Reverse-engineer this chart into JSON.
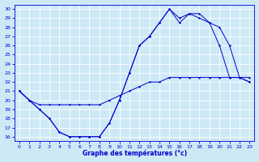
{
  "xlabel": "Graphe des températures (°c)",
  "bg_color": "#cde9f6",
  "line_color": "#0000cc",
  "grid_color": "#ffffff",
  "xlim": [
    -0.5,
    23.5
  ],
  "ylim": [
    15.5,
    30.5
  ],
  "yticks": [
    16,
    17,
    18,
    19,
    20,
    21,
    22,
    23,
    24,
    25,
    26,
    27,
    28,
    29,
    30
  ],
  "xticks": [
    0,
    1,
    2,
    3,
    4,
    5,
    6,
    7,
    8,
    9,
    10,
    11,
    12,
    13,
    14,
    15,
    16,
    17,
    18,
    19,
    20,
    21,
    22,
    23
  ],
  "curve1_x": [
    0,
    1,
    2,
    3,
    4,
    5,
    6,
    7,
    8,
    9,
    10,
    11,
    12,
    13,
    14,
    15,
    16,
    17,
    18,
    19,
    20,
    21,
    22,
    23
  ],
  "curve1_y": [
    21,
    20,
    19,
    18,
    16.5,
    16,
    16,
    16,
    16,
    17.5,
    20,
    23,
    26,
    27,
    28.5,
    30,
    28.5,
    29.5,
    29.5,
    28.5,
    26,
    22.5,
    22.5,
    22
  ],
  "curve2_x": [
    0,
    1,
    2,
    3,
    4,
    5,
    6,
    7,
    8,
    9,
    10,
    11,
    12,
    13,
    14,
    15,
    16,
    17,
    18,
    19,
    20,
    21,
    22,
    23
  ],
  "curve2_y": [
    21,
    20,
    19.5,
    19.5,
    19.5,
    19.5,
    19.5,
    19.5,
    19.5,
    20,
    20.5,
    21,
    21.5,
    22,
    22,
    22.5,
    22.5,
    22.5,
    22.5,
    22.5,
    22.5,
    22.5,
    22.5,
    22.5
  ],
  "curve3_x": [
    0,
    1,
    2,
    3,
    4,
    5,
    6,
    7,
    8,
    9,
    10,
    11,
    12,
    13,
    14,
    15,
    16,
    17,
    18,
    19,
    20,
    21,
    22,
    23
  ],
  "curve3_y": [
    21,
    20,
    19,
    18,
    16.5,
    16,
    16,
    16,
    16,
    17.5,
    20,
    23,
    26,
    27,
    28.5,
    30,
    29,
    29.5,
    29,
    28.5,
    28,
    26,
    22.5,
    22
  ]
}
